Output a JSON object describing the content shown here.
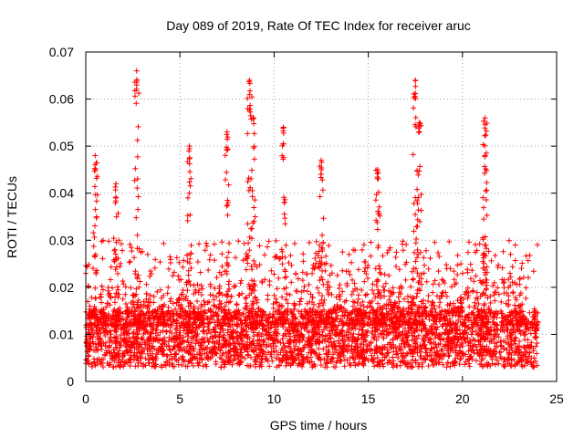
{
  "chart_data": {
    "type": "scatter",
    "title": "Day 089 of 2019, Rate Of TEC Index for receiver aruc",
    "xlabel": "GPS time / hours",
    "ylabel": "ROTI / TECUs",
    "xlim": [
      0,
      25
    ],
    "ylim": [
      0,
      0.07
    ],
    "xticks": [
      0,
      5,
      10,
      15,
      20,
      25
    ],
    "xtick_labels": [
      "0",
      "5",
      "10",
      "15",
      "20",
      "25"
    ],
    "yticks": [
      0,
      0.01,
      0.02,
      0.03,
      0.04,
      0.05,
      0.06,
      0.07
    ],
    "ytick_labels": [
      "0",
      "0.01",
      "0.02",
      "0.03",
      "0.04",
      "0.05",
      "0.06",
      "0.07"
    ],
    "grid": true,
    "marker": "+",
    "color": "#ff0000",
    "x_data_range": [
      0,
      24
    ],
    "baseline_band": [
      0.005,
      0.015
    ],
    "peaks": [
      {
        "x": 0.5,
        "y": 0.048
      },
      {
        "x": 1.6,
        "y": 0.042
      },
      {
        "x": 2.7,
        "y": 0.066
      },
      {
        "x": 5.5,
        "y": 0.05
      },
      {
        "x": 7.5,
        "y": 0.053
      },
      {
        "x": 8.7,
        "y": 0.064
      },
      {
        "x": 8.9,
        "y": 0.056
      },
      {
        "x": 10.5,
        "y": 0.054
      },
      {
        "x": 12.5,
        "y": 0.047
      },
      {
        "x": 15.5,
        "y": 0.045
      },
      {
        "x": 17.5,
        "y": 0.064
      },
      {
        "x": 17.7,
        "y": 0.055
      },
      {
        "x": 21.2,
        "y": 0.056
      },
      {
        "x": 21.2,
        "y": 0.048
      }
    ]
  }
}
